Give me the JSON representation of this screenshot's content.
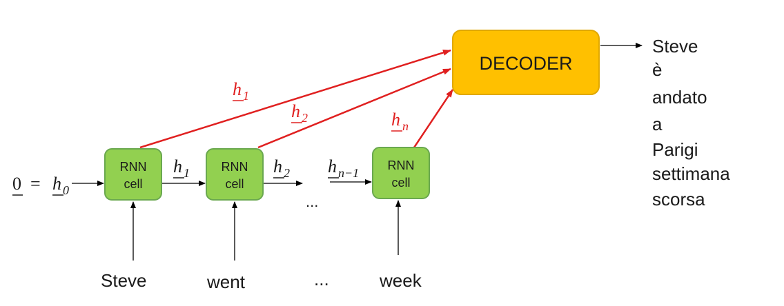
{
  "cell_label_line1": "RNN",
  "cell_label_line2": "cell",
  "decoder_label": "DECODER",
  "initial_state": {
    "zero": "0",
    "equals": "=",
    "h": "h",
    "sub": "0"
  },
  "hidden_states": {
    "h1": {
      "h": "h",
      "sub": "1"
    },
    "h2": {
      "h": "h",
      "sub": "2"
    },
    "hn_minus_1": {
      "h": "h",
      "sub": "n−1"
    },
    "hn": {
      "h": "h",
      "sub": "n"
    }
  },
  "ellipsis": "...",
  "inputs": [
    "Steve",
    "went",
    "...",
    "week"
  ],
  "output_words": [
    "Steve",
    "è",
    "andato",
    "a",
    "Parigi",
    "settimana",
    "scorsa"
  ],
  "colors": {
    "cell_fill": "#92d050",
    "cell_stroke": "#6aa84f",
    "decoder_fill": "#ffc000",
    "decoder_stroke": "#e0a800",
    "context_arrow": "#e02020",
    "arrow": "#000000"
  }
}
